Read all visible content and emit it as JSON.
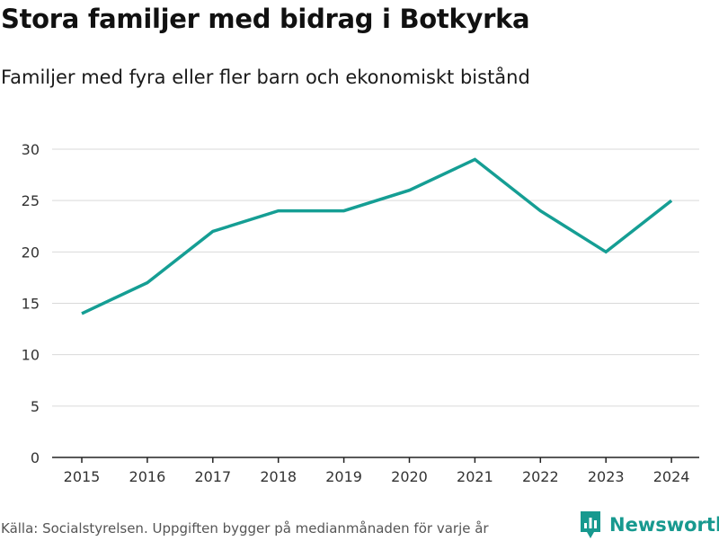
{
  "header": {
    "title": "Stora familjer med bidrag i Botkyrka",
    "subtitle": "Familjer med fyra eller fler barn och ekonomiskt bistånd"
  },
  "footer": {
    "source": "Källa: Socialstyrelsen. Uppgiften bygger på medianmånaden för varje år",
    "brand": "Newsworthy",
    "brand_icon": "newsworthy-logo-icon"
  },
  "colors": {
    "line": "#159e94",
    "grid": "#d9d9d9",
    "axis": "#222222",
    "brand": "#17998f"
  },
  "chart_data": {
    "type": "line",
    "title": "Stora familjer med bidrag i Botkyrka",
    "subtitle": "Familjer med fyra eller fler barn och ekonomiskt bistånd",
    "categories": [
      "2015",
      "2016",
      "2017",
      "2018",
      "2019",
      "2020",
      "2021",
      "2022",
      "2023",
      "2024"
    ],
    "series": [
      {
        "values": [
          14,
          17,
          22,
          24,
          24,
          26,
          29,
          24,
          20,
          25
        ]
      }
    ],
    "y_ticks": [
      "0",
      "5",
      "10",
      "15",
      "20",
      "25",
      "30"
    ],
    "ylim": [
      0,
      30
    ],
    "xlabel": "",
    "ylabel": "",
    "grid": true,
    "legend": "none"
  }
}
